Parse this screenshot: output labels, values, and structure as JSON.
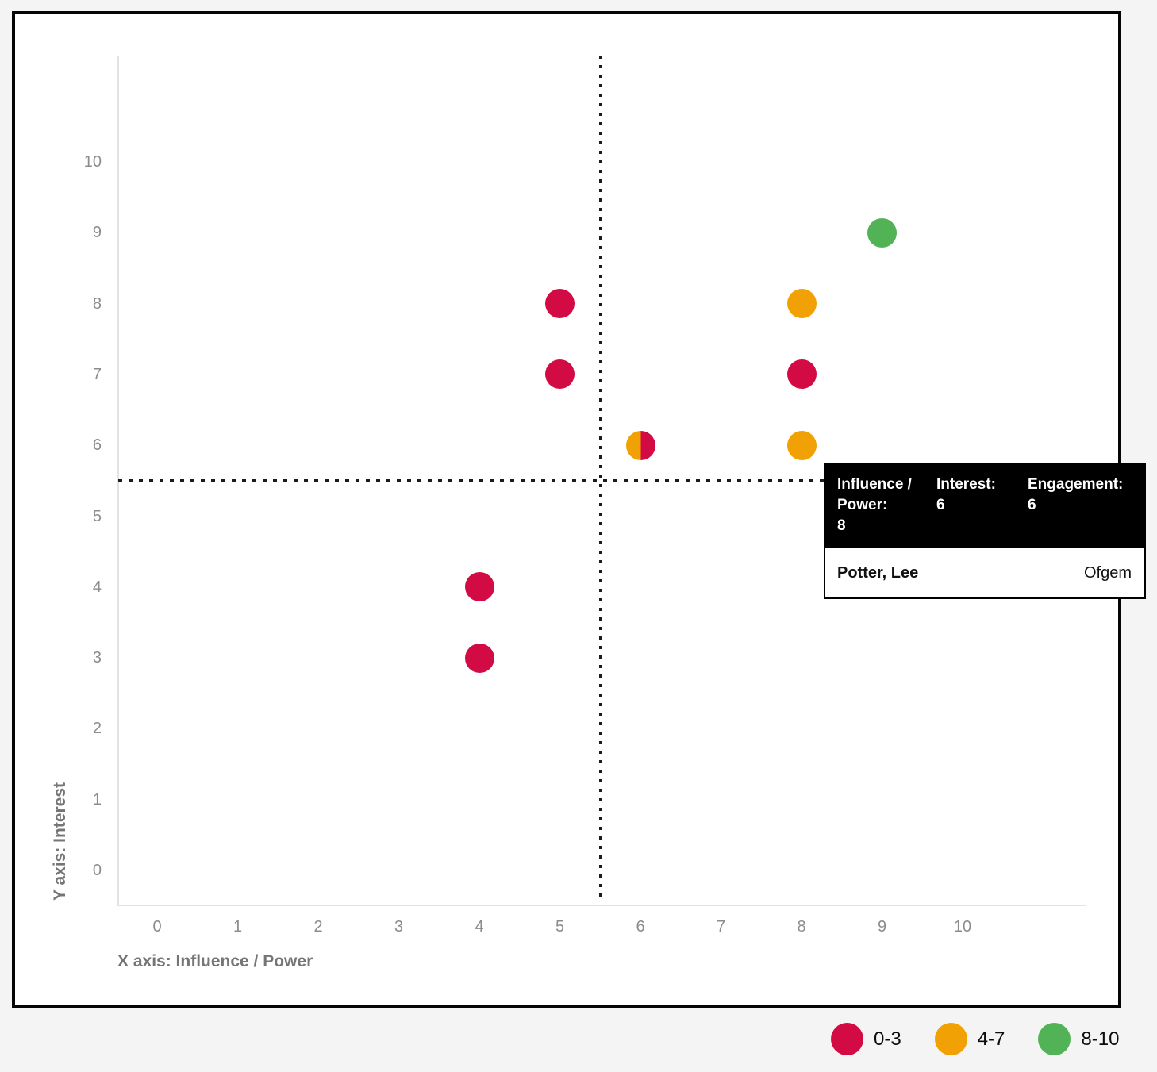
{
  "chart_data": {
    "type": "scatter",
    "xlabel": "X axis: Influence / Power",
    "ylabel": "Y axis: Interest",
    "xlim": [
      -0.5,
      11.5
    ],
    "ylim": [
      -0.5,
      11.5
    ],
    "x_ticks": [
      0,
      1,
      2,
      3,
      4,
      5,
      6,
      7,
      8,
      9,
      10
    ],
    "y_ticks": [
      0,
      1,
      2,
      3,
      4,
      5,
      6,
      7,
      8,
      9,
      10
    ],
    "grid": false,
    "quadrant_lines": {
      "x": 5.5,
      "y": 5.5
    },
    "points": [
      {
        "x": 9,
        "y": 9,
        "engagement_band": "8-10",
        "colors": [
          "#52b356"
        ]
      },
      {
        "x": 8,
        "y": 8,
        "engagement_band": "4-7",
        "colors": [
          "#f2a105"
        ]
      },
      {
        "x": 5,
        "y": 8,
        "engagement_band": "0-3",
        "colors": [
          "#d30b44"
        ]
      },
      {
        "x": 5,
        "y": 7,
        "engagement_band": "0-3",
        "colors": [
          "#d30b44"
        ]
      },
      {
        "x": 8,
        "y": 7,
        "engagement_band": "0-3",
        "colors": [
          "#d30b44"
        ]
      },
      {
        "x": 6,
        "y": 6,
        "engagement_band": "4-7 + 0-3 (overlapping)",
        "colors": [
          "#f2a105",
          "#d30b44"
        ]
      },
      {
        "x": 8,
        "y": 6,
        "engagement_band": "4-7",
        "colors": [
          "#f2a105"
        ],
        "hovered": true
      },
      {
        "x": 4,
        "y": 4,
        "engagement_band": "0-3",
        "colors": [
          "#d30b44"
        ]
      },
      {
        "x": 4,
        "y": 3,
        "engagement_band": "0-3",
        "colors": [
          "#d30b44"
        ]
      }
    ],
    "legend": [
      {
        "label": "0-3",
        "color": "#d30b44"
      },
      {
        "label": "4-7",
        "color": "#f2a105"
      },
      {
        "label": "8-10",
        "color": "#52b356"
      }
    ],
    "legend_position": "bottom-right"
  },
  "tooltip": {
    "influence_label": "Influence / Power:",
    "influence_value": "8",
    "interest_label": "Interest:",
    "interest_value": "6",
    "engagement_label": "Engagement:",
    "engagement_value": "6",
    "name": "Potter, Lee",
    "organisation": "Ofgem"
  },
  "colors": {
    "band_0_3": "#d30b44",
    "band_4_7": "#f2a105",
    "band_8_10": "#52b356",
    "quadrant_line": "#1b1b1b",
    "axis_line": "#e3e3e3",
    "tick_text": "#8c8c8c",
    "axis_title_text": "#757575",
    "frame_border": "#050505",
    "page_background": "#f4f4f4",
    "tooltip_header_bg": "#000000",
    "tooltip_header_text": "#ffffff"
  }
}
